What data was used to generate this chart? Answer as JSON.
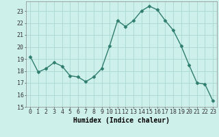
{
  "x": [
    0,
    1,
    2,
    3,
    4,
    5,
    6,
    7,
    8,
    9,
    10,
    11,
    12,
    13,
    14,
    15,
    16,
    17,
    18,
    19,
    20,
    21,
    22,
    23
  ],
  "y": [
    19.2,
    17.9,
    18.2,
    18.7,
    18.4,
    17.6,
    17.5,
    17.1,
    17.5,
    18.2,
    20.1,
    22.2,
    21.7,
    22.2,
    23.0,
    23.4,
    23.1,
    22.2,
    21.4,
    20.1,
    18.5,
    17.0,
    16.9,
    15.5
  ],
  "line_color": "#2e7d6e",
  "marker": "D",
  "marker_size": 2.5,
  "bg_color": "#cef0eb",
  "grid_color": "#aad8d0",
  "xlabel": "Humidex (Indice chaleur)",
  "ylim": [
    15,
    23.8
  ],
  "yticks": [
    15,
    16,
    17,
    18,
    19,
    20,
    21,
    22,
    23
  ],
  "xticks": [
    0,
    1,
    2,
    3,
    4,
    5,
    6,
    7,
    8,
    9,
    10,
    11,
    12,
    13,
    14,
    15,
    16,
    17,
    18,
    19,
    20,
    21,
    22,
    23
  ],
  "line_width": 1.0,
  "tick_fontsize": 6.0,
  "xlabel_fontsize": 7.0
}
